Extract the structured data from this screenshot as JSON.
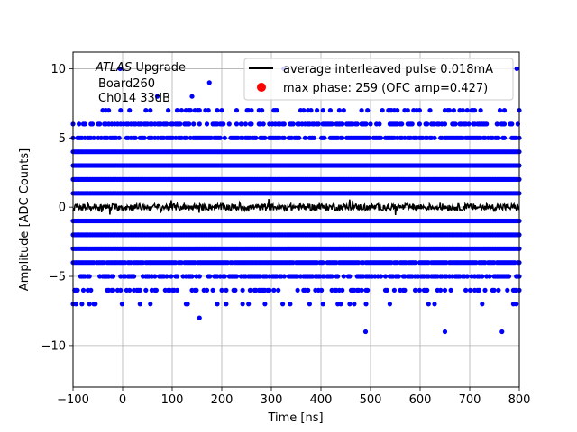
{
  "chart_data": {
    "type": "scatter",
    "xlabel": "Time [ns]",
    "ylabel": "Amplitude [ADC Counts]",
    "xlim": [
      -100,
      800
    ],
    "ylim": [
      -13,
      11.2
    ],
    "xticks": [
      -100,
      0,
      100,
      200,
      300,
      400,
      500,
      600,
      700,
      800
    ],
    "yticks": [
      -10,
      -5,
      0,
      5,
      10
    ],
    "xtick_labels": [
      "−100",
      "0",
      "100",
      "200",
      "300",
      "400",
      "500",
      "600",
      "700",
      "800"
    ],
    "ytick_labels": [
      "−10",
      "−5",
      "0",
      "5",
      "10"
    ],
    "grid": true,
    "annotation": {
      "line1_italic": "ATLAS",
      "line1_rest": " Upgrade",
      "line2": "Board260",
      "line3": "Ch014 33dB"
    },
    "legend": {
      "placement": "top-right",
      "entries": [
        {
          "label": "average interleaved pulse 0.018mA",
          "marker": "line",
          "color": "#000000"
        },
        {
          "label": "max phase: 259 (OFC amp=0.427)",
          "marker": "dot",
          "color": "#ff0000"
        }
      ]
    },
    "series": [
      {
        "name": "samples",
        "kind": "scatter",
        "color": "#0000ff",
        "levels": [
          {
            "y": 4,
            "density": 1.0
          },
          {
            "y": 3,
            "density": 1.0
          },
          {
            "y": 2,
            "density": 1.0
          },
          {
            "y": 1,
            "density": 1.0
          },
          {
            "y": -1,
            "density": 1.0
          },
          {
            "y": -2,
            "density": 1.0
          },
          {
            "y": -3,
            "density": 1.0
          },
          {
            "y": -4,
            "density": 0.95
          },
          {
            "y": 5,
            "density": 0.75
          },
          {
            "y": -5,
            "density": 0.6
          },
          {
            "y": 6,
            "density": 0.5
          },
          {
            "y": -6,
            "density": 0.3
          },
          {
            "y": 7,
            "density": 0.2
          },
          {
            "y": -7,
            "density": 0.08
          }
        ],
        "outliers": [
          {
            "x": -5,
            "y": 10
          },
          {
            "x": 325,
            "y": 10
          },
          {
            "x": 795,
            "y": 10
          },
          {
            "x": 175,
            "y": 9
          },
          {
            "x": 70,
            "y": 8
          },
          {
            "x": 140,
            "y": 8
          },
          {
            "x": 155,
            "y": -8
          },
          {
            "x": 490,
            "y": -9
          },
          {
            "x": 650,
            "y": -9
          },
          {
            "x": 765,
            "y": -9
          }
        ]
      },
      {
        "name": "average interleaved pulse 0.018mA",
        "kind": "line",
        "color": "#000000",
        "mean": 0,
        "noise": 0.25
      }
    ]
  }
}
